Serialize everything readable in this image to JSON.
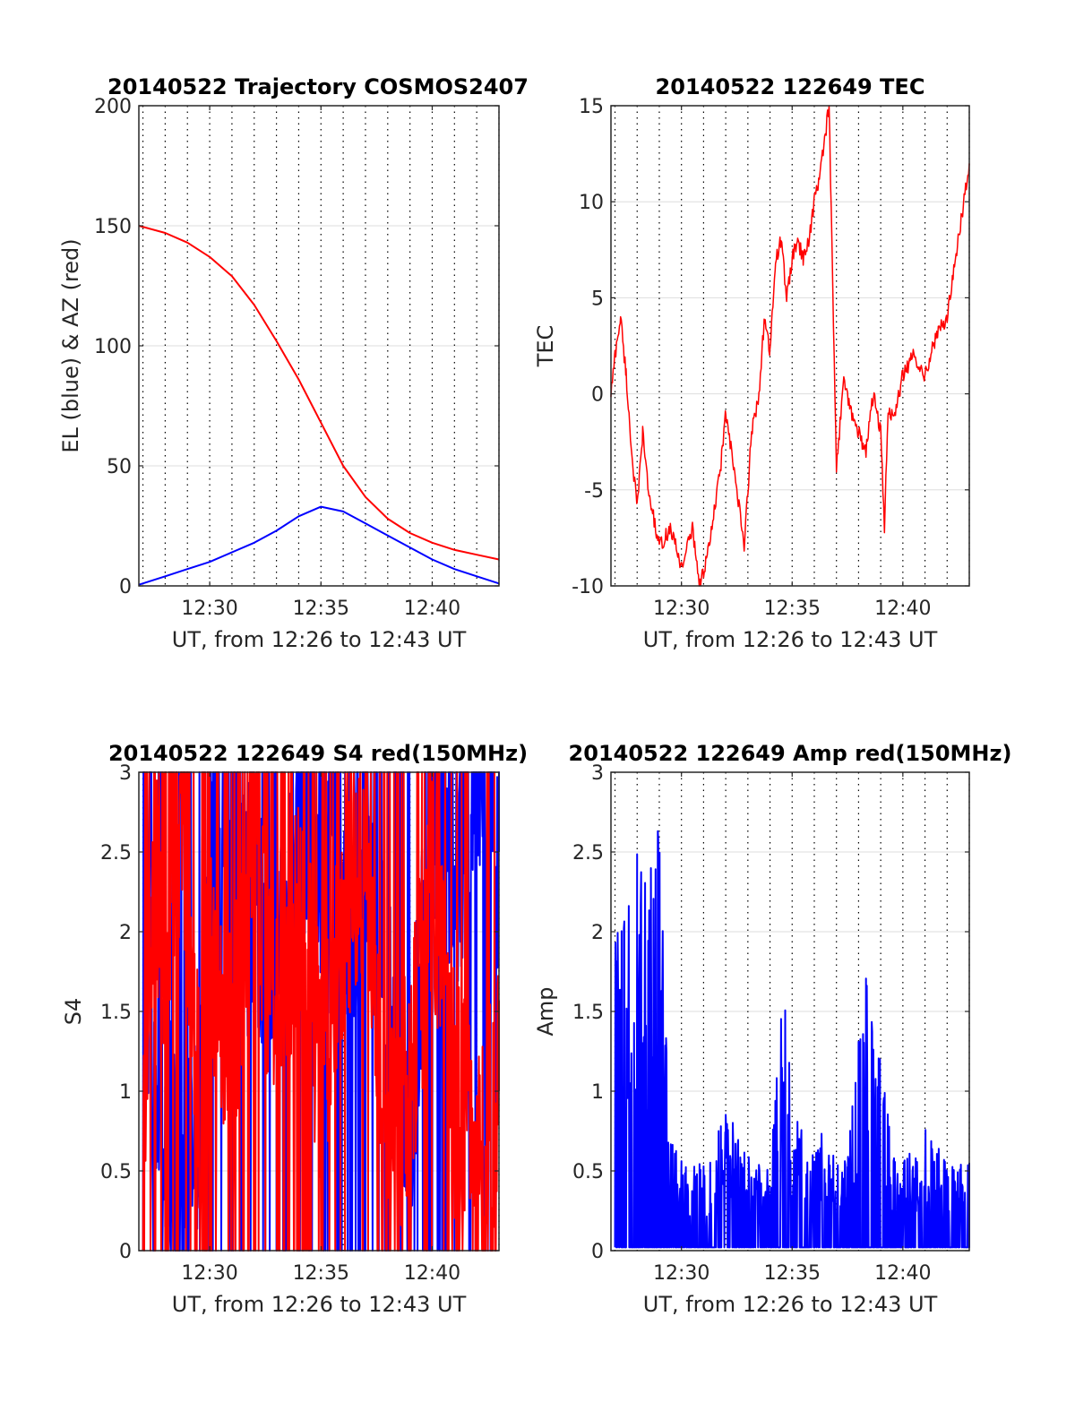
{
  "chart_data": [
    {
      "type": "line",
      "title": "20140522 Trajectory COSMOS2407",
      "xlabel": "UT, from 12:26 to 12:43 UT",
      "ylabel": "EL (blue) & AZ (red)",
      "xlim": [
        "12:26:49",
        "12:43:00"
      ],
      "ylim": [
        0,
        200
      ],
      "xticks": [
        "12:30",
        "12:35",
        "12:40"
      ],
      "yticks": [
        "0",
        "50",
        "100",
        "150",
        "200"
      ],
      "grid": true,
      "series": [
        {
          "color": "#ff0000",
          "x": [
            "12:26:49",
            "12:28:00",
            "12:29:00",
            "12:30:00",
            "12:31:00",
            "12:32:00",
            "12:33:00",
            "12:34:00",
            "12:35:00",
            "12:36:00",
            "12:37:00",
            "12:38:00",
            "12:39:00",
            "12:40:00",
            "12:41:00",
            "12:42:00",
            "12:43:00"
          ],
          "y": [
            150,
            147,
            143,
            137,
            129,
            117,
            102,
            86,
            68,
            50,
            37,
            28,
            22,
            18,
            15,
            13,
            11
          ]
        },
        {
          "color": "#0000ff",
          "x": [
            "12:26:49",
            "12:28:00",
            "12:29:00",
            "12:30:00",
            "12:31:00",
            "12:32:00",
            "12:33:00",
            "12:34:00",
            "12:35:00",
            "12:36:00",
            "12:37:00",
            "12:38:00",
            "12:39:00",
            "12:40:00",
            "12:41:00",
            "12:42:00",
            "12:43:00"
          ],
          "y": [
            0.5,
            4,
            7,
            10,
            14,
            18,
            23,
            29,
            33,
            31,
            26,
            21,
            16,
            11,
            7,
            4,
            1
          ]
        }
      ]
    },
    {
      "type": "line",
      "title": "20140522 122649 TEC",
      "xlabel": "UT, from 12:26 to 12:43 UT",
      "ylabel": "TEC",
      "xlim": [
        "12:26:49",
        "12:43:00"
      ],
      "ylim": [
        -10,
        15
      ],
      "xticks": [
        "12:30",
        "12:35",
        "12:40"
      ],
      "yticks": [
        "-10",
        "-5",
        "0",
        "5",
        "10",
        "15"
      ],
      "grid": true,
      "series": [
        {
          "color": "#ff0000",
          "x": [
            "12:26:49",
            "12:27:00",
            "12:27:15",
            "12:27:30",
            "12:27:45",
            "12:28:00",
            "12:28:15",
            "12:28:30",
            "12:29:00",
            "12:29:30",
            "12:30:00",
            "12:30:15",
            "12:30:30",
            "12:30:50",
            "12:31:15",
            "12:31:45",
            "12:32:00",
            "12:32:15",
            "12:32:30",
            "12:32:50",
            "12:33:10",
            "12:33:30",
            "12:33:45",
            "12:34:00",
            "12:34:15",
            "12:34:30",
            "12:34:45",
            "12:35:00",
            "12:35:15",
            "12:35:30",
            "12:35:45",
            "12:36:00",
            "12:36:20",
            "12:36:40",
            "12:37:00",
            "12:37:20",
            "12:37:40",
            "12:38:00",
            "12:38:20",
            "12:38:40",
            "12:39:00",
            "12:39:10",
            "12:39:20",
            "12:39:40",
            "12:40:00",
            "12:40:30",
            "12:41:00",
            "12:41:30",
            "12:42:00",
            "12:42:30",
            "12:43:00"
          ],
          "y": [
            0,
            2,
            4,
            1,
            -3,
            -6,
            -2,
            -5,
            -8,
            -7,
            -9,
            -8,
            -7,
            -10,
            -8,
            -4,
            -1,
            -3,
            -5,
            -8,
            -2,
            0,
            4,
            2,
            7,
            8,
            5,
            7,
            8,
            7,
            8,
            10,
            12,
            15,
            -4,
            1,
            -1,
            -2,
            -3,
            0,
            -2,
            -7,
            -1,
            -1,
            1,
            2,
            1,
            3,
            4,
            8,
            12
          ]
        }
      ]
    },
    {
      "type": "line",
      "title": "20140522 122649 S4 red(150MHz)",
      "xlabel": "UT, from 12:26 to 12:43 UT",
      "ylabel": "S4",
      "xlim": [
        "12:26:49",
        "12:43:00"
      ],
      "ylim": [
        0,
        3
      ],
      "xticks": [
        "12:30",
        "12:35",
        "12:40"
      ],
      "yticks": [
        "0",
        "0.5",
        "1",
        "1.5",
        "2",
        "2.5",
        "3"
      ],
      "grid": true,
      "series": [
        {
          "color": "#0000ff",
          "x": [
            "12:27:00",
            "12:27:30",
            "12:28:00",
            "12:28:30",
            "12:29:00",
            "12:29:30",
            "12:30:00",
            "12:31:00",
            "12:32:00",
            "12:33:00",
            "12:34:00",
            "12:35:00",
            "12:36:00",
            "12:37:00",
            "12:38:00",
            "12:39:00",
            "12:40:00",
            "12:41:00",
            "12:42:00",
            "12:43:00"
          ],
          "y": [
            2.4,
            1.0,
            0.7,
            0.6,
            0.55,
            0.5,
            2.5,
            2.0,
            2.2,
            1.8,
            2.5,
            2.3,
            1.9,
            2.6,
            1.5,
            0.7,
            2.8,
            2.4,
            2.9,
            2.5
          ]
        },
        {
          "color": "#ff0000",
          "x": [
            "12:27:00",
            "12:27:30",
            "12:28:00",
            "12:28:30",
            "12:29:00",
            "12:29:30",
            "12:30:00",
            "12:31:00",
            "12:32:00",
            "12:33:00",
            "12:34:00",
            "12:35:00",
            "12:36:00",
            "12:37:00",
            "12:38:00",
            "12:39:00",
            "12:40:00",
            "12:41:00",
            "12:42:00",
            "12:43:00"
          ],
          "y": [
            0.8,
            2.5,
            1.9,
            2.8,
            2.2,
            1.0,
            1.7,
            1.4,
            2.3,
            1.6,
            2.1,
            1.2,
            2.0,
            2.6,
            0.5,
            1.1,
            2.3,
            1.0,
            0.5,
            1.0
          ]
        }
      ]
    },
    {
      "type": "line",
      "title": "20140522 122649 Amp red(150MHz)",
      "xlabel": "UT, from 12:26 to 12:43 UT",
      "ylabel": "Amp",
      "xlim": [
        "12:26:49",
        "12:43:00"
      ],
      "ylim": [
        0,
        3
      ],
      "xticks": [
        "12:30",
        "12:35",
        "12:40"
      ],
      "yticks": [
        "0",
        "0.5",
        "1",
        "1.5",
        "2",
        "2.5",
        "3"
      ],
      "grid": true,
      "series": [
        {
          "color": "#0000ff",
          "x": [
            "12:27:00",
            "12:27:30",
            "12:28:00",
            "12:28:30",
            "12:28:50",
            "12:29:10",
            "12:29:30",
            "12:30:00",
            "12:31:00",
            "12:32:00",
            "12:33:00",
            "12:34:00",
            "12:34:40",
            "12:35:00",
            "12:35:40",
            "12:36:30",
            "12:37:30",
            "12:38:20",
            "12:38:40",
            "12:39:00",
            "12:39:30",
            "12:40:00",
            "12:41:00",
            "12:42:00",
            "12:43:00"
          ],
          "y": [
            1.95,
            2.2,
            2.6,
            2.3,
            2.95,
            2.3,
            0.7,
            0.6,
            0.55,
            0.9,
            0.6,
            0.5,
            1.85,
            0.9,
            0.7,
            0.75,
            0.6,
            1.9,
            1.6,
            1.4,
            0.6,
            0.55,
            0.8,
            0.55,
            0.55
          ]
        }
      ]
    }
  ]
}
